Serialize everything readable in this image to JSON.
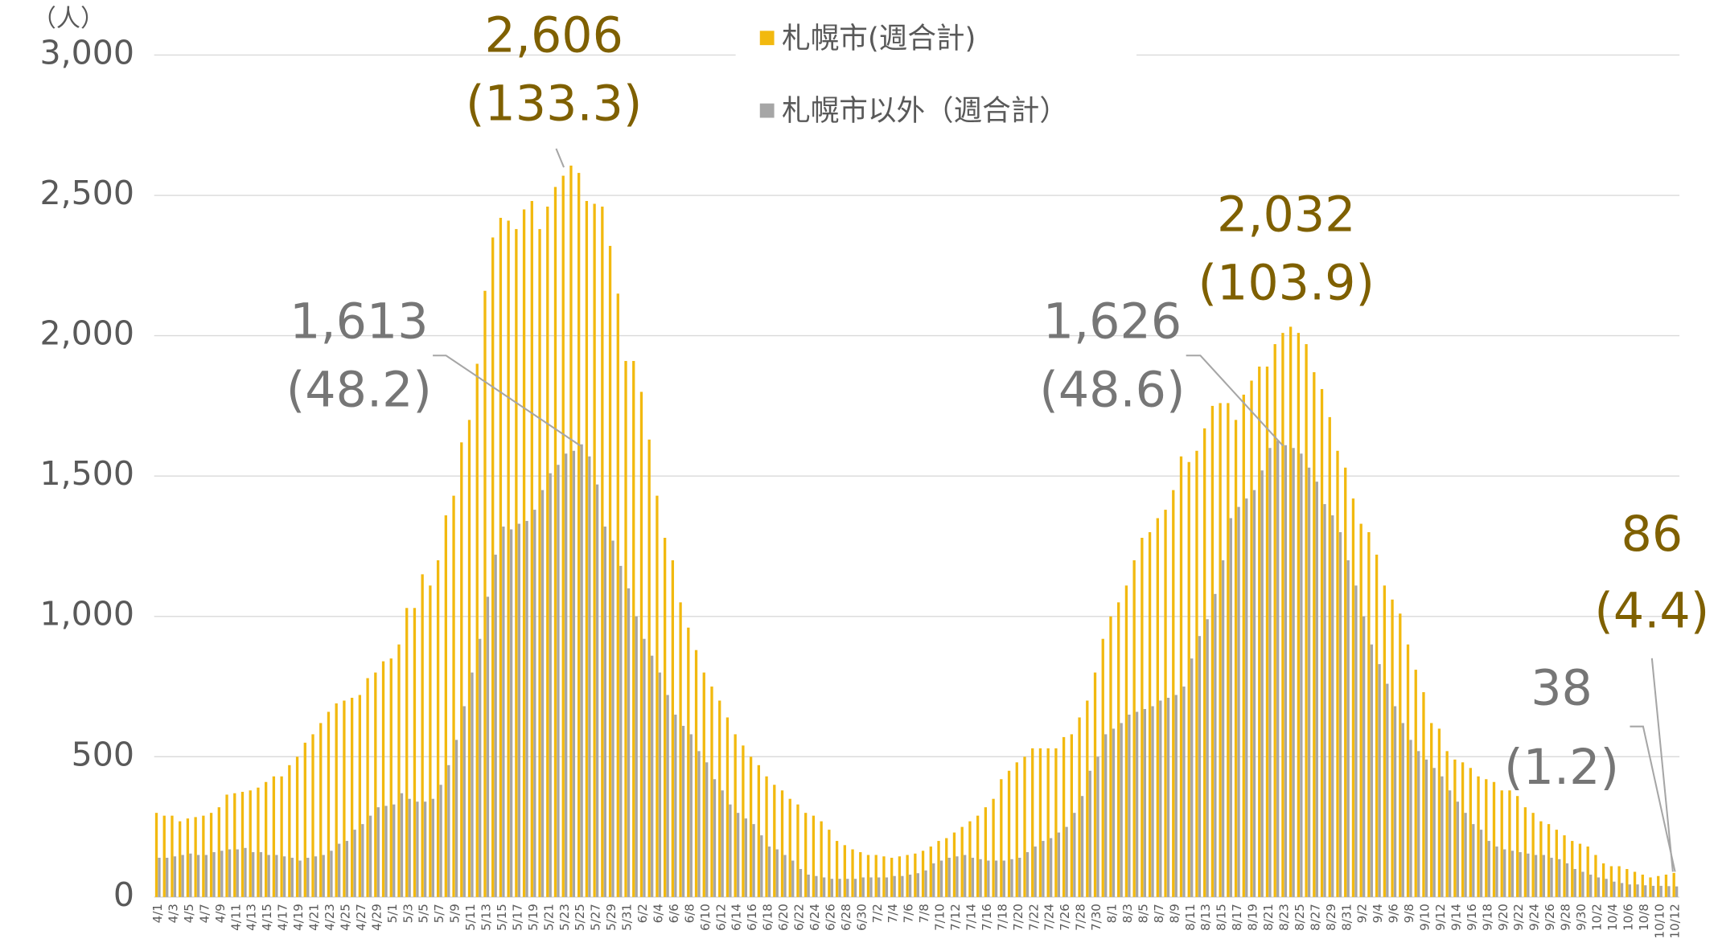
{
  "chart_data": {
    "type": "bar",
    "y_unit": "（人）",
    "categories": [
      "4/1",
      null,
      "4/3",
      null,
      "4/5",
      null,
      "4/7",
      null,
      "4/9",
      null,
      "4/11",
      null,
      "4/13",
      null,
      "4/15",
      null,
      "4/17",
      null,
      "4/19",
      null,
      "4/21",
      null,
      "4/23",
      null,
      "4/25",
      null,
      "4/27",
      null,
      "4/29",
      null,
      "5/1",
      null,
      "5/3",
      null,
      "5/5",
      null,
      "5/7",
      null,
      "5/9",
      null,
      "5/11",
      null,
      "5/13",
      null,
      "5/15",
      null,
      "5/17",
      null,
      "5/19",
      null,
      "5/21",
      null,
      "5/23",
      null,
      "5/25",
      null,
      "5/27",
      null,
      "5/29",
      null,
      "5/31",
      null,
      "6/2",
      null,
      "6/4",
      null,
      "6/6",
      null,
      "6/8",
      null,
      "6/10",
      null,
      "6/12",
      null,
      "6/14",
      null,
      "6/16",
      null,
      "6/18",
      null,
      "6/20",
      null,
      "6/22",
      null,
      "6/24",
      null,
      "6/26",
      null,
      "6/28",
      null,
      "6/30",
      null,
      "7/2",
      null,
      "7/4",
      null,
      "7/6",
      null,
      "7/8",
      null,
      "7/10",
      null,
      "7/12",
      null,
      "7/14",
      null,
      "7/16",
      null,
      "7/18",
      null,
      "7/20",
      null,
      "7/22",
      null,
      "7/24",
      null,
      "7/26",
      null,
      "7/28",
      null,
      "7/30",
      null,
      "8/1",
      null,
      "8/3",
      null,
      "8/5",
      null,
      "8/7",
      null,
      "8/9",
      null,
      "8/11",
      null,
      "8/13",
      null,
      "8/15",
      null,
      "8/17",
      null,
      "8/19",
      null,
      "8/21",
      null,
      "8/23",
      null,
      "8/25",
      null,
      "8/27",
      null,
      "8/29",
      null,
      "8/31",
      null,
      "9/2",
      null,
      "9/4",
      null,
      "9/6",
      null,
      "9/8",
      null,
      "9/10",
      null,
      "9/12",
      null,
      "9/14",
      null,
      "9/16",
      null,
      "9/18",
      null,
      "9/20",
      null,
      "9/22",
      null,
      "9/24",
      null,
      "9/26",
      null,
      "9/28",
      null,
      "9/30",
      null,
      "10/2",
      null,
      "10/4",
      null,
      "10/6",
      null,
      "10/8",
      null,
      "10/10",
      null,
      "10/12"
    ],
    "series": [
      {
        "name": "札幌市(週合計)",
        "color": "#f2b90f",
        "values": [
          300,
          290,
          290,
          270,
          280,
          285,
          290,
          300,
          320,
          365,
          370,
          375,
          380,
          390,
          410,
          430,
          430,
          470,
          500,
          550,
          580,
          620,
          660,
          690,
          700,
          710,
          720,
          780,
          800,
          840,
          850,
          900,
          1030,
          1030,
          1150,
          1110,
          1200,
          1360,
          1430,
          1620,
          1700,
          1900,
          2160,
          2350,
          2420,
          2410,
          2380,
          2450,
          2480,
          2380,
          2460,
          2530,
          2570,
          2606,
          2580,
          2480,
          2470,
          2460,
          2320,
          2150,
          1910,
          1910,
          1800,
          1630,
          1430,
          1280,
          1200,
          1050,
          960,
          880,
          800,
          750,
          700,
          640,
          580,
          540,
          500,
          470,
          430,
          400,
          380,
          350,
          330,
          300,
          290,
          270,
          240,
          200,
          185,
          170,
          160,
          150,
          150,
          145,
          140,
          145,
          150,
          155,
          165,
          180,
          200,
          210,
          230,
          250,
          270,
          290,
          320,
          350,
          420,
          450,
          480,
          500,
          530,
          530,
          530,
          530,
          570,
          580,
          640,
          700,
          800,
          920,
          1000,
          1050,
          1110,
          1200,
          1280,
          1300,
          1350,
          1380,
          1450,
          1570,
          1550,
          1590,
          1670,
          1750,
          1760,
          1760,
          1700,
          1790,
          1840,
          1890,
          1890,
          1970,
          2010,
          2032,
          2010,
          1970,
          1870,
          1810,
          1710,
          1590,
          1530,
          1420,
          1330,
          1300,
          1220,
          1110,
          1060,
          1010,
          900,
          810,
          730,
          620,
          600,
          520,
          490,
          480,
          460,
          430,
          420,
          410,
          380,
          380,
          360,
          320,
          300,
          270,
          260,
          240,
          220,
          200,
          190,
          180,
          150,
          120,
          110,
          110,
          100,
          90,
          80,
          70,
          75,
          80,
          86
        ]
      },
      {
        "name": "札幌市以外（週合計）",
        "color": "#a6a6a6",
        "values": [
          140,
          140,
          145,
          150,
          155,
          150,
          150,
          160,
          165,
          170,
          170,
          175,
          160,
          160,
          150,
          150,
          145,
          140,
          130,
          140,
          145,
          150,
          165,
          190,
          200,
          240,
          260,
          290,
          320,
          325,
          330,
          370,
          350,
          340,
          340,
          350,
          400,
          470,
          560,
          680,
          800,
          920,
          1070,
          1220,
          1320,
          1310,
          1330,
          1340,
          1380,
          1450,
          1510,
          1540,
          1580,
          1590,
          1613,
          1570,
          1470,
          1320,
          1270,
          1180,
          1100,
          1000,
          920,
          860,
          800,
          720,
          650,
          610,
          580,
          520,
          480,
          420,
          380,
          330,
          300,
          280,
          260,
          220,
          180,
          170,
          150,
          130,
          100,
          80,
          75,
          70,
          65,
          65,
          65,
          65,
          70,
          70,
          70,
          70,
          75,
          75,
          80,
          85,
          95,
          120,
          130,
          140,
          145,
          150,
          140,
          135,
          130,
          130,
          130,
          135,
          140,
          160,
          180,
          200,
          210,
          230,
          250,
          300,
          360,
          450,
          500,
          580,
          600,
          620,
          650,
          660,
          670,
          680,
          700,
          710,
          720,
          750,
          850,
          930,
          990,
          1080,
          1200,
          1350,
          1390,
          1420,
          1450,
          1520,
          1600,
          1626,
          1610,
          1600,
          1580,
          1530,
          1480,
          1400,
          1360,
          1300,
          1200,
          1110,
          1000,
          900,
          830,
          760,
          680,
          620,
          560,
          520,
          490,
          460,
          430,
          380,
          340,
          300,
          260,
          240,
          200,
          180,
          170,
          165,
          160,
          155,
          150,
          150,
          140,
          135,
          120,
          100,
          90,
          80,
          70,
          65,
          55,
          50,
          45,
          45,
          42,
          40,
          40,
          39,
          38
        ]
      }
    ],
    "annotations": [
      {
        "label": "2,606",
        "rate": "(133.3)"
      },
      {
        "label": "1,613",
        "rate": "(48.2)"
      },
      {
        "label": "2,032",
        "rate": "(103.9)"
      },
      {
        "label": "1,626",
        "rate": "(48.6)"
      },
      {
        "label": "86",
        "rate": "(4.4)"
      },
      {
        "label": "38",
        "rate": "(1.2)"
      }
    ],
    "ylim": [
      0,
      3000
    ],
    "yticks": [
      0,
      500,
      {
        "value": 1000,
        "label": "1,000"
      },
      {
        "value": 1500,
        "label": "1,500"
      },
      {
        "value": 2000,
        "label": "2,000"
      },
      {
        "value": 2500,
        "label": "2,500"
      },
      {
        "value": 3000,
        "label": "3,000"
      }
    ],
    "grid": true
  }
}
